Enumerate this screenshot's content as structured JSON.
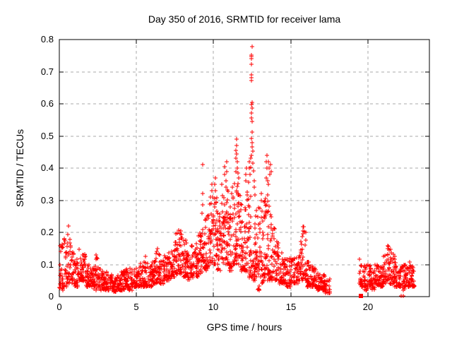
{
  "window": {
    "background": "#ffffff"
  },
  "chart_data": {
    "type": "scatter",
    "title": "Day 350 of 2016, SRMTID for receiver lama",
    "xlabel": "GPS time / hours",
    "ylabel": "SRMTID / TECUs",
    "xlim": [
      0,
      24
    ],
    "ylim": [
      0,
      0.8
    ],
    "xtick_values": [
      0,
      5,
      10,
      15,
      20
    ],
    "xtick_labels": [
      "0",
      "5",
      "10",
      "15",
      "20"
    ],
    "ytick_values": [
      0,
      0.1,
      0.2,
      0.3,
      0.4,
      0.5,
      0.6,
      0.7,
      0.8
    ],
    "ytick_labels": [
      "0",
      "0.1",
      "0.2",
      "0.3",
      "0.4",
      "0.5",
      "0.6",
      "0.7",
      "0.8"
    ],
    "grid": true,
    "legend": "none",
    "marker": "plus",
    "marker_size": 7,
    "point_color": "#ff0000",
    "grid_color": "#a8a8a8",
    "frame_color": "#000000",
    "text_color": "#000000",
    "seed": 2016350,
    "skew": 1.6,
    "envelope_bins": [
      [
        0.0,
        0.25,
        0.02,
        0.17,
        25
      ],
      [
        0.25,
        0.5,
        0.03,
        0.19,
        25
      ],
      [
        0.5,
        0.75,
        0.04,
        0.2,
        25
      ],
      [
        0.75,
        1.0,
        0.04,
        0.15,
        25
      ],
      [
        1.0,
        1.25,
        0.03,
        0.12,
        25
      ],
      [
        1.25,
        1.5,
        0.05,
        0.17,
        25
      ],
      [
        1.5,
        1.75,
        0.04,
        0.14,
        25
      ],
      [
        1.75,
        2.0,
        0.03,
        0.1,
        25
      ],
      [
        2.0,
        2.25,
        0.03,
        0.09,
        25
      ],
      [
        2.25,
        2.5,
        0.02,
        0.12,
        25
      ],
      [
        2.5,
        2.75,
        0.02,
        0.09,
        25
      ],
      [
        2.75,
        3.0,
        0.02,
        0.08,
        25
      ],
      [
        3.0,
        3.25,
        0.02,
        0.08,
        25
      ],
      [
        3.25,
        3.5,
        0.02,
        0.07,
        25
      ],
      [
        3.5,
        3.75,
        0.015,
        0.06,
        25
      ],
      [
        3.75,
        4.0,
        0.02,
        0.07,
        25
      ],
      [
        4.0,
        4.25,
        0.02,
        0.08,
        25
      ],
      [
        4.25,
        4.5,
        0.03,
        0.09,
        25
      ],
      [
        4.5,
        4.75,
        0.02,
        0.09,
        25
      ],
      [
        4.75,
        5.0,
        0.03,
        0.09,
        25
      ],
      [
        5.0,
        5.25,
        0.03,
        0.1,
        25
      ],
      [
        5.25,
        5.5,
        0.03,
        0.11,
        25
      ],
      [
        5.5,
        5.75,
        0.03,
        0.11,
        25
      ],
      [
        5.75,
        6.0,
        0.03,
        0.1,
        25
      ],
      [
        6.0,
        6.25,
        0.04,
        0.12,
        25
      ],
      [
        6.25,
        6.5,
        0.04,
        0.14,
        25
      ],
      [
        6.5,
        6.75,
        0.04,
        0.12,
        25
      ],
      [
        6.75,
        7.0,
        0.05,
        0.13,
        25
      ],
      [
        7.0,
        7.25,
        0.05,
        0.14,
        25
      ],
      [
        7.25,
        7.5,
        0.06,
        0.17,
        25
      ],
      [
        7.5,
        7.75,
        0.07,
        0.2,
        25
      ],
      [
        7.75,
        8.0,
        0.07,
        0.21,
        25
      ],
      [
        8.0,
        8.25,
        0.06,
        0.18,
        25
      ],
      [
        8.25,
        8.5,
        0.05,
        0.15,
        25
      ],
      [
        8.5,
        8.75,
        0.06,
        0.16,
        25
      ],
      [
        8.75,
        9.0,
        0.06,
        0.18,
        25
      ],
      [
        9.0,
        9.25,
        0.07,
        0.2,
        25
      ],
      [
        9.25,
        9.5,
        0.08,
        0.24,
        25
      ],
      [
        9.5,
        9.75,
        0.08,
        0.26,
        25
      ],
      [
        9.75,
        10.0,
        0.1,
        0.31,
        30
      ],
      [
        10.0,
        10.25,
        0.1,
        0.33,
        30
      ],
      [
        10.25,
        10.5,
        0.08,
        0.28,
        30
      ],
      [
        10.5,
        10.75,
        0.1,
        0.33,
        30
      ],
      [
        10.75,
        11.0,
        0.1,
        0.35,
        30
      ],
      [
        11.0,
        11.25,
        0.08,
        0.32,
        30
      ],
      [
        11.25,
        11.5,
        0.1,
        0.36,
        30
      ],
      [
        11.5,
        11.75,
        0.1,
        0.36,
        30
      ],
      [
        11.75,
        12.0,
        0.08,
        0.3,
        30
      ],
      [
        12.0,
        12.25,
        0.08,
        0.34,
        30
      ],
      [
        12.25,
        12.5,
        0.06,
        0.36,
        30
      ],
      [
        12.5,
        12.75,
        0.05,
        0.32,
        30
      ],
      [
        12.75,
        13.0,
        0.02,
        0.28,
        30
      ],
      [
        13.0,
        13.25,
        0.04,
        0.3,
        30
      ],
      [
        13.25,
        13.5,
        0.06,
        0.32,
        30
      ],
      [
        13.5,
        13.75,
        0.05,
        0.3,
        30
      ],
      [
        13.75,
        14.0,
        0.05,
        0.22,
        25
      ],
      [
        14.0,
        14.25,
        0.05,
        0.18,
        25
      ],
      [
        14.25,
        14.5,
        0.04,
        0.14,
        25
      ],
      [
        14.5,
        14.75,
        0.04,
        0.13,
        25
      ],
      [
        14.75,
        15.0,
        0.03,
        0.12,
        25
      ],
      [
        15.0,
        15.25,
        0.04,
        0.12,
        25
      ],
      [
        15.25,
        15.5,
        0.04,
        0.13,
        25
      ],
      [
        15.5,
        15.75,
        0.05,
        0.19,
        25
      ],
      [
        15.75,
        16.0,
        0.05,
        0.22,
        25
      ],
      [
        16.0,
        16.25,
        0.03,
        0.11,
        25
      ],
      [
        16.25,
        16.5,
        0.03,
        0.1,
        25
      ],
      [
        16.5,
        16.75,
        0.03,
        0.09,
        25
      ],
      [
        16.75,
        17.0,
        0.02,
        0.08,
        25
      ],
      [
        17.0,
        17.25,
        0.02,
        0.07,
        25
      ],
      [
        17.25,
        17.55,
        0.01,
        0.06,
        25
      ],
      [
        19.45,
        19.75,
        0.03,
        0.12,
        25
      ],
      [
        19.75,
        20.0,
        0.02,
        0.1,
        25
      ],
      [
        20.0,
        20.25,
        0.03,
        0.11,
        25
      ],
      [
        20.25,
        20.5,
        0.02,
        0.1,
        25
      ],
      [
        20.5,
        20.75,
        0.03,
        0.1,
        25
      ],
      [
        20.75,
        21.0,
        0.03,
        0.11,
        25
      ],
      [
        21.0,
        21.25,
        0.04,
        0.13,
        25
      ],
      [
        21.25,
        21.5,
        0.04,
        0.16,
        25
      ],
      [
        21.5,
        21.75,
        0.04,
        0.14,
        25
      ],
      [
        21.75,
        22.0,
        0.03,
        0.11,
        25
      ],
      [
        22.0,
        22.25,
        0.03,
        0.1,
        25
      ],
      [
        22.25,
        22.5,
        0.02,
        0.1,
        25
      ],
      [
        22.5,
        22.75,
        0.03,
        0.11,
        25
      ],
      [
        22.75,
        23.05,
        0.03,
        0.1,
        25
      ]
    ],
    "extra_points": [
      [
        0.6,
        0.22
      ],
      [
        2.4,
        0.13
      ],
      [
        2.42,
        0.12
      ],
      [
        5.6,
        0.125
      ],
      [
        6.35,
        0.15
      ],
      [
        6.33,
        0.14
      ],
      [
        7.9,
        0.205
      ],
      [
        7.85,
        0.195
      ],
      [
        9.3,
        0.41
      ],
      [
        9.31,
        0.32
      ],
      [
        9.28,
        0.285
      ],
      [
        9.26,
        0.26
      ],
      [
        9.9,
        0.35
      ],
      [
        9.88,
        0.33
      ],
      [
        9.92,
        0.31
      ],
      [
        10.1,
        0.37
      ],
      [
        10.08,
        0.35
      ],
      [
        10.12,
        0.33
      ],
      [
        10.55,
        0.35
      ],
      [
        10.7,
        0.38
      ],
      [
        10.73,
        0.405
      ],
      [
        10.85,
        0.42
      ],
      [
        10.87,
        0.39
      ],
      [
        10.82,
        0.36
      ],
      [
        11.2,
        0.34
      ],
      [
        11.18,
        0.32
      ],
      [
        11.44,
        0.39
      ],
      [
        11.46,
        0.43
      ],
      [
        11.47,
        0.455
      ],
      [
        11.49,
        0.47
      ],
      [
        11.51,
        0.49
      ],
      [
        11.5,
        0.445
      ],
      [
        11.53,
        0.42
      ],
      [
        11.56,
        0.4
      ],
      [
        11.58,
        0.385
      ],
      [
        11.62,
        0.37
      ],
      [
        12.08,
        0.38
      ],
      [
        12.12,
        0.4
      ],
      [
        12.1,
        0.36
      ],
      [
        12.3,
        0.42
      ],
      [
        12.33,
        0.4
      ],
      [
        12.36,
        0.38
      ],
      [
        12.49,
        0.779
      ],
      [
        12.46,
        0.752
      ],
      [
        12.48,
        0.747
      ],
      [
        12.47,
        0.74
      ],
      [
        12.45,
        0.724
      ],
      [
        12.48,
        0.69
      ],
      [
        12.46,
        0.682
      ],
      [
        12.44,
        0.673
      ],
      [
        12.5,
        0.604
      ],
      [
        12.47,
        0.597
      ],
      [
        12.49,
        0.586
      ],
      [
        12.46,
        0.571
      ],
      [
        12.48,
        0.557
      ],
      [
        12.51,
        0.546
      ],
      [
        12.5,
        0.513
      ],
      [
        12.47,
        0.492
      ],
      [
        12.52,
        0.479
      ],
      [
        12.49,
        0.466
      ],
      [
        12.53,
        0.452
      ],
      [
        12.46,
        0.44
      ],
      [
        12.42,
        0.431
      ],
      [
        12.55,
        0.415
      ],
      [
        12.4,
        0.402
      ],
      [
        12.58,
        0.392
      ],
      [
        12.62,
        0.36
      ],
      [
        12.66,
        0.34
      ],
      [
        13.1,
        0.32
      ],
      [
        13.08,
        0.3
      ],
      [
        13.4,
        0.37
      ],
      [
        13.42,
        0.42
      ],
      [
        13.45,
        0.44
      ],
      [
        13.48,
        0.4
      ],
      [
        13.5,
        0.36
      ],
      [
        13.55,
        0.42
      ],
      [
        13.58,
        0.35
      ],
      [
        13.6,
        0.4
      ],
      [
        13.65,
        0.38
      ],
      [
        13.7,
        0.41
      ],
      [
        13.72,
        0.39
      ],
      [
        15.78,
        0.205
      ],
      [
        15.8,
        0.218
      ],
      [
        15.82,
        0.195
      ],
      [
        21.3,
        0.15
      ],
      [
        21.33,
        0.155
      ],
      [
        21.38,
        0.145
      ]
    ],
    "zero_square_x": 19.55,
    "zero_plus_x": [
      22.17,
      22.3
    ],
    "data_gaps": [
      [
        17.55,
        19.45
      ],
      [
        23.05,
        24
      ]
    ]
  }
}
